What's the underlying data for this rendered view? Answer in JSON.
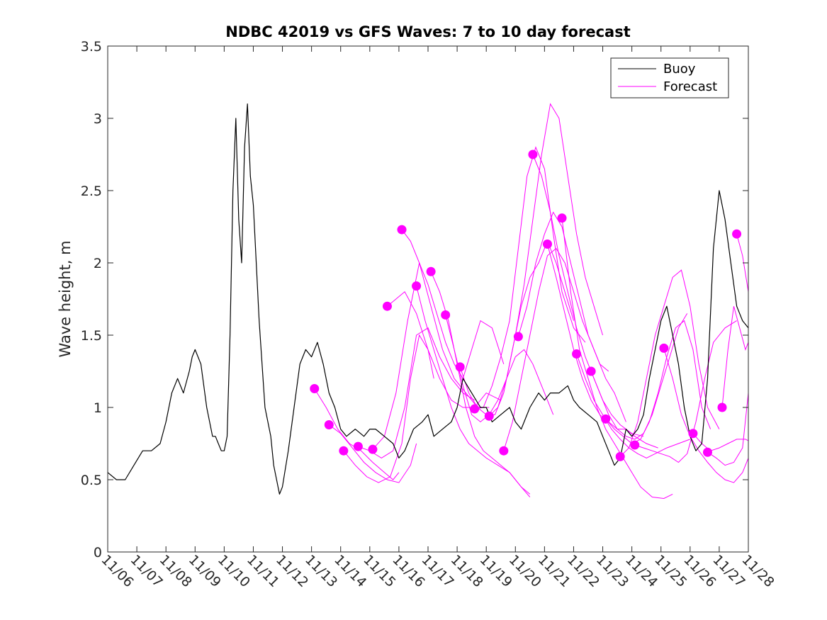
{
  "chart_data": {
    "type": "line",
    "title": "NDBC 42019 vs GFS Waves: 7 to 10 day forecast",
    "xlabel": "",
    "ylabel": "Wave height, m",
    "xlim": [
      6,
      28
    ],
    "ylim": [
      0,
      3.5
    ],
    "x_tick_values": [
      6,
      7,
      8,
      9,
      10,
      11,
      12,
      13,
      14,
      15,
      16,
      17,
      18,
      19,
      20,
      21,
      22,
      23,
      24,
      25,
      26,
      27,
      28
    ],
    "x_tick_labels": [
      "11/06",
      "11/07",
      "11/08",
      "11/09",
      "11/10",
      "11/11",
      "11/12",
      "11/13",
      "11/14",
      "11/15",
      "11/16",
      "11/17",
      "11/18",
      "11/19",
      "11/20",
      "11/21",
      "11/22",
      "11/23",
      "11/24",
      "11/25",
      "11/26",
      "11/27",
      "11/28"
    ],
    "y_tick_values": [
      0,
      0.5,
      1,
      1.5,
      2,
      2.5,
      3,
      3.5
    ],
    "y_tick_labels": [
      "0",
      "0.5",
      "1",
      "1.5",
      "2",
      "2.5",
      "3",
      "3.5"
    ],
    "legend": {
      "position": "top-right",
      "entries": [
        {
          "label": "Buoy",
          "color": "#000000"
        },
        {
          "label": "Forecast",
          "color": "#ff00ff"
        }
      ]
    },
    "series": [
      {
        "name": "Buoy",
        "color": "#000000",
        "x": [
          6.0,
          6.3,
          6.6,
          6.9,
          7.2,
          7.5,
          7.8,
          8.0,
          8.2,
          8.4,
          8.6,
          8.8,
          8.9,
          9.0,
          9.2,
          9.4,
          9.6,
          9.7,
          9.8,
          9.9,
          10.0,
          10.1,
          10.2,
          10.3,
          10.4,
          10.5,
          10.6,
          10.7,
          10.8,
          10.9,
          11.0,
          11.1,
          11.2,
          11.3,
          11.4,
          11.5,
          11.6,
          11.7,
          11.8,
          11.9,
          12.0,
          12.2,
          12.4,
          12.6,
          12.8,
          13.0,
          13.2,
          13.4,
          13.6,
          13.8,
          14.0,
          14.2,
          14.5,
          14.8,
          15.0,
          15.2,
          15.5,
          15.8,
          16.0,
          16.2,
          16.5,
          16.8,
          17.0,
          17.2,
          17.5,
          17.8,
          18.0,
          18.2,
          18.5,
          18.8,
          19.0,
          19.2,
          19.5,
          19.8,
          20.0,
          20.2,
          20.5,
          20.8,
          21.0,
          21.2,
          21.5,
          21.8,
          22.0,
          22.2,
          22.5,
          22.8,
          23.0,
          23.2,
          23.4,
          23.6,
          23.8,
          24.0,
          24.2,
          24.4,
          24.6,
          24.8,
          25.0,
          25.2,
          25.4,
          25.6,
          25.8,
          26.0,
          26.2,
          26.4,
          26.6,
          26.8,
          27.0,
          27.2,
          27.4,
          27.6,
          27.8,
          28.0
        ],
        "values": [
          0.55,
          0.5,
          0.5,
          0.6,
          0.7,
          0.7,
          0.75,
          0.9,
          1.1,
          1.2,
          1.1,
          1.25,
          1.35,
          1.4,
          1.3,
          1.0,
          0.8,
          0.8,
          0.75,
          0.7,
          0.7,
          0.8,
          1.5,
          2.5,
          3.0,
          2.3,
          2.0,
          2.8,
          3.1,
          2.6,
          2.4,
          2.0,
          1.6,
          1.3,
          1.0,
          0.9,
          0.8,
          0.6,
          0.5,
          0.4,
          0.45,
          0.7,
          1.0,
          1.3,
          1.4,
          1.35,
          1.45,
          1.3,
          1.1,
          1.0,
          0.85,
          0.8,
          0.85,
          0.8,
          0.85,
          0.85,
          0.8,
          0.75,
          0.65,
          0.7,
          0.85,
          0.9,
          0.95,
          0.8,
          0.85,
          0.9,
          1.0,
          1.2,
          1.1,
          1.0,
          1.0,
          0.9,
          0.95,
          1.0,
          0.9,
          0.85,
          1.0,
          1.1,
          1.05,
          1.1,
          1.1,
          1.15,
          1.05,
          1.0,
          0.95,
          0.9,
          0.8,
          0.7,
          0.6,
          0.65,
          0.85,
          0.8,
          0.85,
          0.95,
          1.2,
          1.4,
          1.6,
          1.7,
          1.5,
          1.3,
          1.0,
          0.8,
          0.7,
          0.75,
          1.2,
          2.1,
          2.5,
          2.3,
          2.0,
          1.7,
          1.6,
          1.55
        ]
      },
      {
        "name": "Forecast 1",
        "color": "#ff00ff",
        "x": [
          13.1,
          13.5,
          13.9,
          14.3,
          14.7,
          15.1,
          15.5,
          15.8,
          16.0
        ],
        "values": [
          1.13,
          1.0,
          0.85,
          0.75,
          0.7,
          0.62,
          0.55,
          0.5,
          0.55
        ]
      },
      {
        "name": "Forecast 2",
        "color": "#ff00ff",
        "x": [
          13.6,
          14.0,
          14.4,
          14.8,
          15.2,
          15.6,
          16.0,
          16.4,
          16.6
        ],
        "values": [
          0.88,
          0.82,
          0.72,
          0.62,
          0.55,
          0.5,
          0.48,
          0.6,
          0.75
        ]
      },
      {
        "name": "Forecast 3",
        "color": "#ff00ff",
        "x": [
          14.1,
          14.5,
          14.9,
          15.3,
          15.7,
          16.1,
          16.4,
          16.7,
          17.0,
          17.2
        ],
        "values": [
          0.7,
          0.6,
          0.52,
          0.48,
          0.52,
          0.75,
          1.2,
          1.5,
          1.4,
          1.2
        ]
      },
      {
        "name": "Forecast 4",
        "color": "#ff00ff",
        "x": [
          14.6,
          15.0,
          15.4,
          15.8,
          16.2,
          16.6,
          17.0,
          17.4,
          17.8,
          18.2,
          18.6
        ],
        "values": [
          0.73,
          0.7,
          0.65,
          0.7,
          1.0,
          1.5,
          1.55,
          1.35,
          1.2,
          1.1,
          1.05
        ]
      },
      {
        "name": "Forecast 5",
        "color": "#ff00ff",
        "x": [
          15.1,
          15.5,
          15.9,
          16.3,
          16.7,
          17.1,
          17.5,
          17.9,
          18.3,
          18.7,
          19.1
        ],
        "values": [
          0.71,
          0.8,
          1.1,
          1.6,
          2.0,
          1.7,
          1.4,
          1.2,
          1.1,
          1.0,
          1.0
        ]
      },
      {
        "name": "Forecast 6",
        "color": "#ff00ff",
        "x": [
          15.6,
          15.9,
          16.2,
          16.6,
          17.0,
          17.4,
          17.8,
          18.2,
          18.6,
          19.0,
          19.5
        ],
        "values": [
          1.7,
          1.75,
          1.8,
          1.65,
          1.4,
          1.2,
          1.05,
          1.0,
          1.0,
          1.1,
          1.05
        ]
      },
      {
        "name": "Forecast 7",
        "color": "#ff00ff",
        "x": [
          16.1,
          16.4,
          16.7,
          17.0,
          17.3,
          17.6,
          17.9,
          18.2,
          18.5,
          18.8,
          19.2,
          19.6
        ],
        "values": [
          2.23,
          2.15,
          2.0,
          1.85,
          1.65,
          1.45,
          1.3,
          1.2,
          1.4,
          1.6,
          1.55,
          1.3
        ]
      },
      {
        "name": "Forecast 8",
        "color": "#ff00ff",
        "x": [
          16.6,
          16.9,
          17.2,
          17.5,
          17.8,
          18.1,
          18.4,
          18.7,
          19.0,
          19.4,
          19.8,
          20.2,
          20.5
        ],
        "values": [
          1.84,
          1.6,
          1.4,
          1.2,
          1.0,
          0.85,
          0.75,
          0.7,
          0.65,
          0.6,
          0.55,
          0.45,
          0.4
        ]
      },
      {
        "name": "Forecast 9",
        "color": "#ff00ff",
        "x": [
          17.1,
          17.4,
          17.7,
          18.0,
          18.3,
          18.6,
          18.9,
          19.2,
          19.5,
          19.8,
          20.2,
          20.5
        ],
        "values": [
          1.94,
          1.8,
          1.6,
          1.3,
          1.0,
          0.8,
          0.7,
          0.65,
          0.6,
          0.55,
          0.45,
          0.38
        ]
      },
      {
        "name": "Forecast 10",
        "color": "#ff00ff",
        "x": [
          17.6,
          17.9,
          18.2,
          18.5,
          18.8,
          19.1,
          19.4,
          19.7,
          20.0,
          20.3,
          20.6,
          21.0,
          21.3
        ],
        "values": [
          1.64,
          1.4,
          1.15,
          0.95,
          0.9,
          0.95,
          1.05,
          1.2,
          1.35,
          1.4,
          1.3,
          1.1,
          0.95
        ]
      },
      {
        "name": "Forecast 11",
        "color": "#ff00ff",
        "x": [
          18.1,
          18.4,
          18.7,
          19.0,
          19.3,
          19.6,
          19.9,
          20.2,
          20.5,
          20.8,
          21.1,
          21.4,
          21.7,
          22.0
        ],
        "values": [
          1.28,
          1.1,
          1.0,
          0.95,
          0.95,
          1.1,
          1.4,
          1.7,
          1.9,
          2.0,
          2.15,
          2.0,
          1.8,
          1.6
        ]
      },
      {
        "name": "Forecast 12",
        "color": "#ff00ff",
        "x": [
          18.6,
          18.9,
          19.2,
          19.5,
          19.8,
          20.1,
          20.4,
          20.7,
          21.0,
          21.3,
          21.6,
          22.0,
          22.4
        ],
        "values": [
          0.99,
          1.0,
          1.15,
          1.35,
          1.6,
          2.1,
          2.6,
          2.8,
          2.65,
          2.2,
          1.8,
          1.55,
          1.45
        ]
      },
      {
        "name": "Forecast 13",
        "color": "#ff00ff",
        "x": [
          19.1,
          19.4,
          19.7,
          20.0,
          20.3,
          20.6,
          20.9,
          21.2,
          21.5,
          21.8,
          22.1,
          22.4,
          22.7,
          23.0
        ],
        "values": [
          0.94,
          1.0,
          1.2,
          1.5,
          1.85,
          2.3,
          2.75,
          3.1,
          3.0,
          2.6,
          2.2,
          1.9,
          1.7,
          1.5
        ]
      },
      {
        "name": "Forecast 14",
        "color": "#ff00ff",
        "x": [
          19.6,
          19.9,
          20.2,
          20.5,
          20.8,
          21.1,
          21.4,
          21.7,
          22.0,
          22.3,
          22.6,
          22.9,
          23.2
        ],
        "values": [
          0.7,
          0.9,
          1.2,
          1.5,
          1.8,
          2.05,
          2.1,
          2.0,
          1.8,
          1.6,
          1.45,
          1.3,
          1.25
        ]
      },
      {
        "name": "Forecast 15",
        "color": "#ff00ff",
        "x": [
          20.1,
          20.4,
          20.7,
          21.0,
          21.3,
          21.6,
          21.9,
          22.2,
          22.5,
          22.8,
          23.1,
          23.4,
          23.8
        ],
        "values": [
          1.49,
          1.7,
          2.0,
          2.2,
          2.35,
          2.25,
          2.0,
          1.75,
          1.5,
          1.35,
          1.2,
          1.1,
          0.9
        ]
      },
      {
        "name": "Forecast 16",
        "color": "#ff00ff",
        "x": [
          20.6,
          20.9,
          21.2,
          21.5,
          21.8,
          22.1,
          22.4,
          22.7,
          23.0,
          23.3,
          23.6,
          24.0,
          24.4
        ],
        "values": [
          2.75,
          2.6,
          2.35,
          2.05,
          1.8,
          1.55,
          1.35,
          1.2,
          1.05,
          0.95,
          0.88,
          0.82,
          0.8
        ]
      },
      {
        "name": "Forecast 17",
        "color": "#ff00ff",
        "x": [
          21.1,
          21.4,
          21.7,
          22.0,
          22.3,
          22.6,
          22.9,
          23.2,
          23.5,
          23.8,
          24.1,
          24.5,
          24.9
        ],
        "values": [
          2.13,
          1.9,
          1.65,
          1.4,
          1.2,
          1.05,
          0.95,
          0.9,
          0.85,
          0.85,
          0.8,
          0.75,
          0.72
        ]
      },
      {
        "name": "Forecast 18",
        "color": "#ff00ff",
        "x": [
          21.6,
          21.9,
          22.2,
          22.5,
          22.8,
          23.1,
          23.4,
          23.7,
          24.0,
          24.3,
          24.7,
          25.1,
          25.4
        ],
        "values": [
          2.31,
          1.8,
          1.4,
          1.2,
          1.0,
          0.85,
          0.75,
          0.65,
          0.55,
          0.45,
          0.38,
          0.37,
          0.4
        ]
      },
      {
        "name": "Forecast 19",
        "color": "#ff00ff",
        "x": [
          22.1,
          22.4,
          22.7,
          23.0,
          23.3,
          23.6,
          23.9,
          24.2,
          24.5,
          24.8,
          25.2,
          25.6,
          26.0
        ],
        "values": [
          1.37,
          1.2,
          1.05,
          0.95,
          0.85,
          0.78,
          0.72,
          0.68,
          0.65,
          0.68,
          0.72,
          0.75,
          0.78
        ]
      },
      {
        "name": "Forecast 20",
        "color": "#ff00ff",
        "x": [
          22.6,
          22.9,
          23.2,
          23.5,
          23.8,
          24.1,
          24.4,
          24.7,
          25.0,
          25.3,
          25.6,
          25.9
        ],
        "values": [
          1.25,
          1.1,
          0.95,
          0.85,
          0.8,
          0.78,
          0.82,
          0.95,
          1.15,
          1.35,
          1.55,
          1.65
        ]
      },
      {
        "name": "Forecast 21",
        "color": "#ff00ff",
        "x": [
          23.1,
          23.4,
          23.7,
          24.0,
          24.3,
          24.6,
          24.9,
          25.2,
          25.5,
          25.8,
          26.1,
          26.4,
          26.7
        ],
        "values": [
          0.92,
          0.85,
          0.8,
          0.75,
          0.78,
          0.9,
          1.1,
          1.35,
          1.55,
          1.6,
          1.4,
          1.0,
          0.85
        ]
      },
      {
        "name": "Forecast 22",
        "color": "#ff00ff",
        "x": [
          23.6,
          23.9,
          24.2,
          24.5,
          24.8,
          25.1,
          25.4,
          25.7,
          26.0,
          26.3,
          26.6,
          27.0
        ],
        "values": [
          0.66,
          0.72,
          0.9,
          1.2,
          1.5,
          1.7,
          1.9,
          1.95,
          1.7,
          1.3,
          1.0,
          0.85
        ]
      },
      {
        "name": "Forecast 23",
        "color": "#ff00ff",
        "x": [
          24.1,
          24.4,
          24.7,
          25.0,
          25.3,
          25.6,
          25.9,
          26.2,
          26.5,
          26.8,
          27.2,
          27.6
        ],
        "values": [
          0.74,
          0.72,
          0.7,
          0.68,
          0.66,
          0.62,
          0.68,
          0.9,
          1.2,
          1.45,
          1.55,
          1.6
        ]
      },
      {
        "name": "Forecast 24",
        "color": "#ff00ff",
        "x": [
          25.1,
          25.4,
          25.7,
          26.0,
          26.3,
          26.6,
          26.9,
          27.2,
          27.5,
          27.8,
          28.0
        ],
        "values": [
          1.41,
          1.2,
          0.95,
          0.8,
          0.7,
          0.62,
          0.55,
          0.5,
          0.48,
          0.55,
          0.65
        ]
      },
      {
        "name": "Forecast 25",
        "color": "#ff00ff",
        "x": [
          26.1,
          26.4,
          26.7,
          27.0,
          27.3,
          27.6,
          27.9,
          28.0
        ],
        "values": [
          0.82,
          0.75,
          0.7,
          0.72,
          0.75,
          0.78,
          0.78,
          0.77
        ]
      },
      {
        "name": "Forecast 26",
        "color": "#ff00ff",
        "x": [
          26.6,
          26.9,
          27.2,
          27.5,
          27.8,
          28.0
        ],
        "values": [
          0.69,
          0.65,
          0.6,
          0.62,
          0.72,
          1.1
        ]
      },
      {
        "name": "Forecast 27",
        "color": "#ff00ff",
        "x": [
          27.1,
          27.3,
          27.5,
          27.7,
          27.9,
          28.0
        ],
        "values": [
          1.0,
          1.4,
          1.7,
          1.55,
          1.4,
          1.45
        ]
      },
      {
        "name": "Forecast 28",
        "color": "#ff00ff",
        "x": [
          27.6,
          27.8,
          28.0
        ],
        "values": [
          2.2,
          2.05,
          1.8
        ]
      }
    ],
    "markers": {
      "color": "#ff00ff",
      "x": [
        13.1,
        13.6,
        14.1,
        14.6,
        15.1,
        15.6,
        16.1,
        16.6,
        17.1,
        17.6,
        18.1,
        18.6,
        19.1,
        19.6,
        20.1,
        20.6,
        21.1,
        21.6,
        22.1,
        22.6,
        23.1,
        23.6,
        24.1,
        25.1,
        26.1,
        26.6,
        27.1,
        27.6
      ],
      "values": [
        1.13,
        0.88,
        0.7,
        0.73,
        0.71,
        1.7,
        2.23,
        1.84,
        1.94,
        1.64,
        1.28,
        0.99,
        0.94,
        0.7,
        1.49,
        2.75,
        2.13,
        2.31,
        1.37,
        1.25,
        0.92,
        0.66,
        0.74,
        1.41,
        0.82,
        0.69,
        1.0,
        2.2
      ]
    }
  }
}
